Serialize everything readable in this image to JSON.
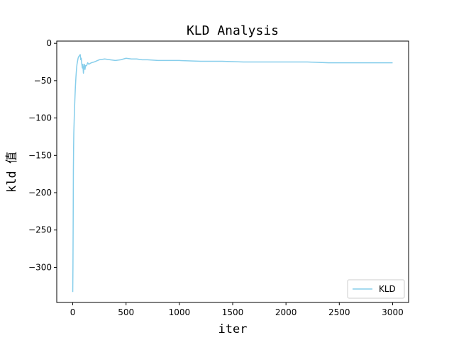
{
  "chart_data": {
    "type": "line",
    "title": "KLD Analysis",
    "xlabel": "iter",
    "ylabel": "kld 值",
    "xlim": [
      -150,
      3150
    ],
    "ylim": [
      -347,
      3
    ],
    "x_ticks": [
      0,
      500,
      1000,
      1500,
      2000,
      2500,
      3000
    ],
    "x_tick_labels": [
      "0",
      "500",
      "1000",
      "1500",
      "2000",
      "2500",
      "3000"
    ],
    "y_ticks": [
      0,
      -50,
      -100,
      -150,
      -200,
      -250,
      -300
    ],
    "y_tick_labels": [
      "0",
      "−50",
      "−100",
      "−150",
      "−200",
      "−250",
      "−300"
    ],
    "grid": false,
    "legend_position": "lower-right",
    "series": [
      {
        "name": "KLD",
        "color": "#87ceeb",
        "x": [
          0,
          2,
          4,
          6,
          8,
          10,
          15,
          20,
          25,
          30,
          35,
          40,
          45,
          50,
          55,
          60,
          65,
          70,
          75,
          80,
          85,
          90,
          95,
          100,
          105,
          110,
          115,
          120,
          130,
          140,
          150,
          175,
          200,
          250,
          300,
          350,
          400,
          450,
          500,
          550,
          600,
          650,
          700,
          800,
          900,
          1000,
          1200,
          1400,
          1600,
          1800,
          2000,
          2200,
          2400,
          2600,
          2800,
          3000
        ],
        "y": [
          -333,
          -300,
          -240,
          -170,
          -140,
          -120,
          -95,
          -75,
          -58,
          -45,
          -35,
          -28,
          -24,
          -20,
          -18,
          -17,
          -16,
          -15,
          -22,
          -20,
          -28,
          -33,
          -28,
          -40,
          -32,
          -28,
          -35,
          -30,
          -30,
          -26,
          -28,
          -26,
          -25,
          -22,
          -21,
          -22,
          -23,
          -22,
          -20,
          -21,
          -21,
          -22,
          -22,
          -23,
          -23,
          -23,
          -24,
          -24,
          -25,
          -25,
          -25,
          -25,
          -26,
          -26,
          -26,
          -26
        ]
      }
    ]
  }
}
